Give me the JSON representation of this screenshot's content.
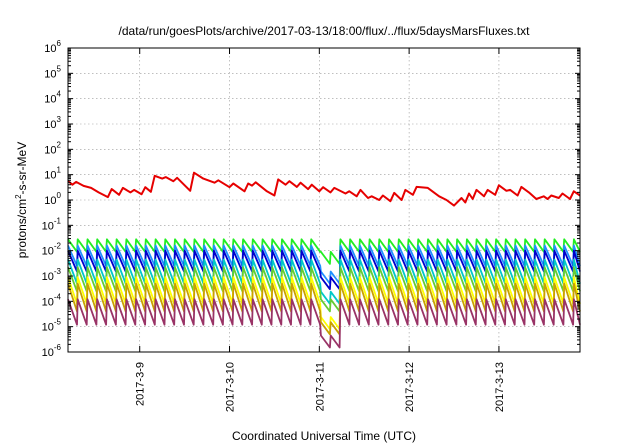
{
  "chart_data": {
    "type": "line",
    "title": "/data/run/goesPlots/archive/2017-03-13/18:00/flux/../flux/5daysMarsFluxes.txt",
    "xlabel": "Coordinated Universal Time (UTC)",
    "ylabel": "protons/cm2-s-sr-MeV",
    "ylabel_parts": {
      "pre": "protons/cm",
      "sup": "2",
      "post": "-s-sr-MeV"
    },
    "y_scale": "log",
    "ylim": [
      1e-06,
      1000000.0
    ],
    "y_ticks": [
      {
        "value": 1e-06,
        "base": "10",
        "exp": "-6"
      },
      {
        "value": 1e-05,
        "base": "10",
        "exp": "-5"
      },
      {
        "value": 0.0001,
        "base": "10",
        "exp": "-4"
      },
      {
        "value": 0.001,
        "base": "10",
        "exp": "-3"
      },
      {
        "value": 0.01,
        "base": "10",
        "exp": "-2"
      },
      {
        "value": 0.1,
        "base": "10",
        "exp": "-1"
      },
      {
        "value": 1.0,
        "base": "10",
        "exp": "0"
      },
      {
        "value": 10.0,
        "base": "10",
        "exp": "1"
      },
      {
        "value": 100.0,
        "base": "10",
        "exp": "2"
      },
      {
        "value": 1000.0,
        "base": "10",
        "exp": "3"
      },
      {
        "value": 10000.0,
        "base": "10",
        "exp": "4"
      },
      {
        "value": 100000.0,
        "base": "10",
        "exp": "5"
      },
      {
        "value": 1000000.0,
        "base": "10",
        "exp": "6"
      }
    ],
    "xlim": [
      "2017-03-08T04:50",
      "2017-03-13T21:40"
    ],
    "x_ticks": [
      {
        "value": "2017-03-09T00:00",
        "label": "2017-3-9"
      },
      {
        "value": "2017-03-10T00:00",
        "label": "2017-3-10"
      },
      {
        "value": "2017-03-11T00:00",
        "label": "2017-3-11"
      },
      {
        "value": "2017-03-12T00:00",
        "label": "2017-3-12"
      },
      {
        "value": "2017-03-13T00:00",
        "label": "2017-3-13"
      }
    ],
    "grid": true,
    "legend": "none",
    "series": [
      {
        "color": "#e60000",
        "points": [
          [
            "2017-03-08T04:50",
            5.6
          ],
          [
            "2017-03-08T06:00",
            4.0
          ],
          [
            "2017-03-08T07:00",
            5.2
          ],
          [
            "2017-03-08T09:00",
            3.6
          ],
          [
            "2017-03-08T11:00",
            3.0
          ],
          [
            "2017-03-08T13:00",
            2.0
          ],
          [
            "2017-03-08T15:30",
            1.3
          ],
          [
            "2017-03-08T16:30",
            2.7
          ],
          [
            "2017-03-08T18:30",
            1.6
          ],
          [
            "2017-03-08T19:30",
            3.0
          ],
          [
            "2017-03-08T21:30",
            2.0
          ],
          [
            "2017-03-08T22:30",
            2.5
          ],
          [
            "2017-03-09T00:30",
            1.7
          ],
          [
            "2017-03-09T01:30",
            3.2
          ],
          [
            "2017-03-09T03:00",
            2.1
          ],
          [
            "2017-03-09T04:00",
            9.0
          ],
          [
            "2017-03-09T06:00",
            7.0
          ],
          [
            "2017-03-09T07:00",
            8.0
          ],
          [
            "2017-03-09T09:00",
            5.5
          ],
          [
            "2017-03-09T10:00",
            7.5
          ],
          [
            "2017-03-09T13:30",
            2.3
          ],
          [
            "2017-03-09T14:30",
            12.0
          ],
          [
            "2017-03-09T17:00",
            7.0
          ],
          [
            "2017-03-09T20:00",
            4.8
          ],
          [
            "2017-03-09T21:00",
            6.0
          ],
          [
            "2017-03-10T00:00",
            3.2
          ],
          [
            "2017-03-10T01:00",
            4.5
          ],
          [
            "2017-03-10T04:00",
            2.2
          ],
          [
            "2017-03-10T05:00",
            4.5
          ],
          [
            "2017-03-10T06:00",
            3.7
          ],
          [
            "2017-03-10T07:00",
            5.0
          ],
          [
            "2017-03-10T10:00",
            2.2
          ],
          [
            "2017-03-10T12:00",
            1.5
          ],
          [
            "2017-03-10T13:00",
            6.5
          ],
          [
            "2017-03-10T15:00",
            4.0
          ],
          [
            "2017-03-10T16:00",
            5.5
          ],
          [
            "2017-03-10T18:00",
            3.3
          ],
          [
            "2017-03-10T19:00",
            4.8
          ],
          [
            "2017-03-10T21:00",
            2.7
          ],
          [
            "2017-03-10T22:00",
            4.0
          ],
          [
            "2017-03-11T00:00",
            2.2
          ],
          [
            "2017-03-11T01:00",
            3.2
          ],
          [
            "2017-03-11T03:00",
            2.0
          ],
          [
            "2017-03-11T04:00",
            3.0
          ],
          [
            "2017-03-11T07:00",
            1.8
          ],
          [
            "2017-03-11T08:00",
            2.2
          ],
          [
            "2017-03-11T10:00",
            1.4
          ],
          [
            "2017-03-11T11:00",
            2.5
          ],
          [
            "2017-03-11T13:00",
            1.2
          ],
          [
            "2017-03-11T14:00",
            1.4
          ],
          [
            "2017-03-11T16:00",
            1.0
          ],
          [
            "2017-03-11T17:00",
            1.5
          ],
          [
            "2017-03-11T19:00",
            0.9
          ],
          [
            "2017-03-11T20:00",
            1.9
          ],
          [
            "2017-03-11T22:00",
            1.0
          ],
          [
            "2017-03-11T23:00",
            2.5
          ],
          [
            "2017-03-12T01:00",
            1.6
          ],
          [
            "2017-03-12T02:00",
            3.3
          ],
          [
            "2017-03-12T05:00",
            3.0
          ],
          [
            "2017-03-12T08:00",
            1.4
          ],
          [
            "2017-03-12T10:00",
            1.0
          ],
          [
            "2017-03-12T12:00",
            0.6
          ],
          [
            "2017-03-12T14:00",
            1.2
          ],
          [
            "2017-03-12T15:00",
            0.8
          ],
          [
            "2017-03-12T16:00",
            1.8
          ],
          [
            "2017-03-12T17:00",
            1.1
          ],
          [
            "2017-03-12T18:00",
            2.5
          ],
          [
            "2017-03-12T20:00",
            1.4
          ],
          [
            "2017-03-12T21:00",
            2.5
          ],
          [
            "2017-03-12T23:00",
            1.6
          ],
          [
            "2017-03-13T00:00",
            3.8
          ],
          [
            "2017-03-13T02:00",
            2.3
          ],
          [
            "2017-03-13T03:00",
            2.5
          ],
          [
            "2017-03-13T05:00",
            1.5
          ],
          [
            "2017-03-13T06:00",
            3.3
          ],
          [
            "2017-03-13T08:00",
            2.0
          ],
          [
            "2017-03-13T10:00",
            1.1
          ],
          [
            "2017-03-13T12:00",
            1.4
          ],
          [
            "2017-03-13T13:00",
            1.1
          ],
          [
            "2017-03-13T14:00",
            1.5
          ],
          [
            "2017-03-13T16:00",
            1.2
          ],
          [
            "2017-03-13T17:00",
            1.8
          ],
          [
            "2017-03-13T19:00",
            1.1
          ],
          [
            "2017-03-13T20:00",
            2.2
          ],
          [
            "2017-03-13T21:40",
            1.5
          ]
        ]
      },
      {
        "color": "#22ee22",
        "sawtooth": {
          "start": "2017-03-08T04:50",
          "end": "2017-03-13T21:40",
          "period_hours": 2.6,
          "high": 0.028,
          "low": 0.009,
          "dip": {
            "start": "2017-03-11T00:00",
            "end": "2017-03-11T04:00",
            "value": 0.003
          }
        }
      },
      {
        "color": "#1e90ff",
        "sawtooth": {
          "start": "2017-03-08T04:50",
          "end": "2017-03-13T21:40",
          "period_hours": 2.6,
          "high": 0.016,
          "low": 0.0025,
          "dip": {
            "start": "2017-03-11T00:00",
            "end": "2017-03-11T04:00",
            "value": 0.0005
          }
        }
      },
      {
        "color": "#0000cc",
        "sawtooth": {
          "start": "2017-03-08T04:50",
          "end": "2017-03-13T21:40",
          "period_hours": 2.6,
          "high": 0.01,
          "low": 0.0015,
          "dip": {
            "start": "2017-03-11T00:00",
            "end": "2017-03-11T04:00",
            "value": 0.0003
          }
        }
      },
      {
        "color": "#00c8c8",
        "sawtooth": {
          "start": "2017-03-08T04:50",
          "end": "2017-03-13T21:40",
          "period_hours": 2.6,
          "high": 0.0045,
          "low": 0.0005,
          "dip": {
            "start": "2017-03-11T00:00",
            "end": "2017-03-11T04:00",
            "value": 8e-05
          }
        }
      },
      {
        "color": "#66cc33",
        "sawtooth": {
          "start": "2017-03-08T04:50",
          "end": "2017-03-13T21:40",
          "period_hours": 2.6,
          "high": 0.0022,
          "low": 0.00025,
          "dip": {
            "start": "2017-03-11T00:00",
            "end": "2017-03-11T04:00",
            "value": 4e-05
          }
        }
      },
      {
        "color": "#ffff00",
        "sawtooth": {
          "start": "2017-03-08T04:50",
          "end": "2017-03-13T21:40",
          "period_hours": 2.6,
          "high": 0.0009,
          "low": 8e-05,
          "dip": {
            "start": "2017-03-11T00:00",
            "end": "2017-03-11T04:00",
            "value": 8e-06
          }
        }
      },
      {
        "color": "#c8a000",
        "sawtooth": {
          "start": "2017-03-08T04:50",
          "end": "2017-03-13T21:40",
          "period_hours": 2.6,
          "high": 0.0005,
          "low": 4e-05,
          "dip": {
            "start": "2017-03-11T00:00",
            "end": "2017-03-11T04:00",
            "value": 5e-06
          }
        }
      },
      {
        "color": "#993366",
        "sawtooth": {
          "start": "2017-03-08T04:50",
          "end": "2017-03-13T21:40",
          "period_hours": 2.6,
          "high": 0.00012,
          "low": 1.2e-05,
          "dip": {
            "start": "2017-03-11T00:00",
            "end": "2017-03-11T04:00",
            "value": 1.5e-06
          }
        }
      }
    ]
  }
}
